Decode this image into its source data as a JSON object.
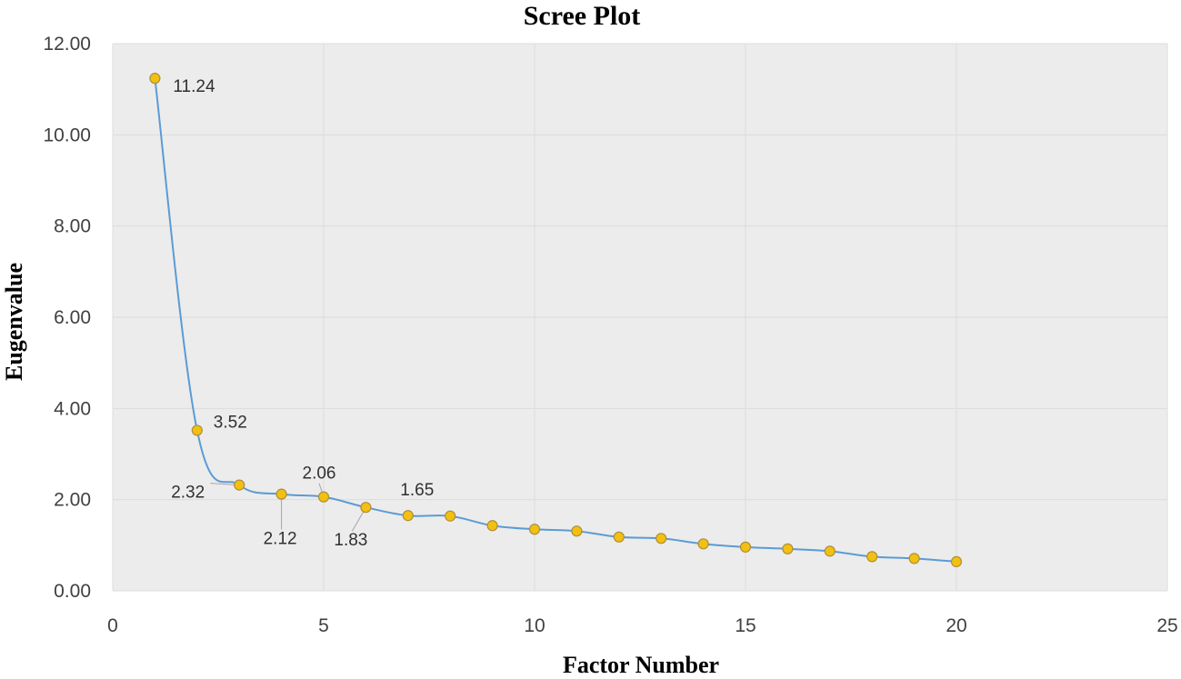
{
  "chart_data": {
    "type": "scatter",
    "title": "Scree Plot",
    "xlabel": "Factor Number",
    "ylabel": "Eugenvalue",
    "xlim": [
      0,
      25
    ],
    "ylim": [
      0,
      12
    ],
    "xticks": [
      "0",
      "5",
      "10",
      "15",
      "20",
      "25"
    ],
    "yticks": [
      "0.00",
      "2.00",
      "4.00",
      "6.00",
      "8.00",
      "10.00",
      "12.00"
    ],
    "grid": true,
    "legend": "none",
    "smooth_line": true,
    "line_color": "#5b9bd5",
    "marker_color": "#f2c011",
    "plot_background": "#ececec",
    "series": [
      {
        "x": [
          1,
          2,
          3,
          4,
          5,
          6,
          7,
          8,
          9,
          10,
          11,
          12,
          13,
          14,
          15,
          16,
          17,
          18,
          19,
          20
        ],
        "y": [
          11.24,
          3.52,
          2.32,
          2.12,
          2.06,
          1.83,
          1.65,
          1.64,
          1.43,
          1.35,
          1.31,
          1.18,
          1.15,
          1.03,
          0.96,
          0.92,
          0.87,
          0.75,
          0.71,
          0.64
        ]
      }
    ],
    "data_labels": [
      {
        "x": 1,
        "text": "11.24"
      },
      {
        "x": 2,
        "text": "3.52"
      },
      {
        "x": 3,
        "text": "2.32"
      },
      {
        "x": 4,
        "text": "2.12"
      },
      {
        "x": 5,
        "text": "2.06"
      },
      {
        "x": 6,
        "text": "1.83"
      },
      {
        "x": 7,
        "text": "1.65"
      }
    ]
  }
}
